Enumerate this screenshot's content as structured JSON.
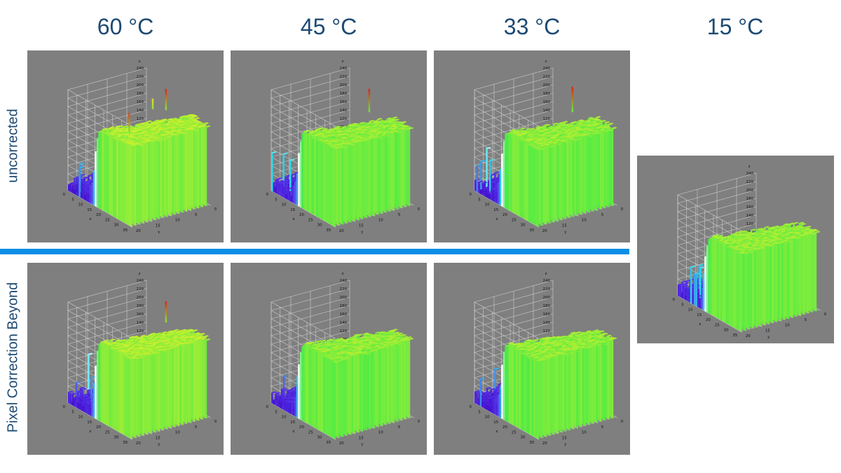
{
  "columns": [
    "60 °C",
    "45 °C",
    "33 °C",
    "15 °C"
  ],
  "rows": [
    "uncorrected",
    "Pixel Correction Beyond"
  ],
  "colors": {
    "text": "#1d4a73",
    "divider": "#0b8fe6",
    "panel": "#7f7f7f"
  },
  "chart_data": [
    {
      "type": "surface3d",
      "panel": "60 °C uncorrected",
      "zlabel": "z",
      "xlabel": "x",
      "ylabel": "y",
      "zticks": [
        0,
        20,
        40,
        60,
        80,
        100,
        120,
        140,
        160,
        180,
        200,
        220,
        240
      ],
      "xticks": [
        0,
        5,
        10,
        15,
        20,
        25,
        30,
        35
      ],
      "yticks": [
        20,
        15,
        10,
        5,
        0
      ],
      "zlim": [
        0,
        240
      ],
      "low_level": 20,
      "high_level": 190,
      "spikes": [
        {
          "z": 240
        },
        {
          "z": 235
        },
        {
          "z": 215
        }
      ]
    },
    {
      "type": "surface3d",
      "panel": "45 °C uncorrected",
      "zlabel": "z",
      "xlabel": "x",
      "ylabel": "y",
      "zticks": [
        0,
        20,
        40,
        60,
        80,
        100,
        120,
        140,
        160,
        180,
        200,
        220,
        240
      ],
      "xticks": [
        0,
        5,
        10,
        15,
        20,
        25,
        30,
        35
      ],
      "yticks": [
        20,
        15,
        10,
        5,
        0
      ],
      "zlim": [
        0,
        240
      ],
      "low_level": 20,
      "high_level": 185,
      "spikes": [
        {
          "z": 240
        }
      ]
    },
    {
      "type": "surface3d",
      "panel": "33 °C uncorrected",
      "zlabel": "z",
      "xlabel": "x",
      "ylabel": "y",
      "zticks": [
        0,
        20,
        40,
        60,
        80,
        100,
        120,
        140,
        160,
        180,
        200,
        220,
        240
      ],
      "xticks": [
        0,
        5,
        10,
        15,
        20,
        25,
        30,
        35
      ],
      "yticks": [
        20,
        15,
        10,
        5,
        0
      ],
      "zlim": [
        0,
        240
      ],
      "low_level": 20,
      "high_level": 185,
      "spikes": [
        {
          "z": 245
        }
      ]
    },
    {
      "type": "surface3d",
      "panel": "15 °C",
      "zlabel": "z",
      "xlabel": "x",
      "ylabel": "y",
      "zticks": [
        0,
        20,
        40,
        60,
        80,
        100,
        120,
        140,
        160,
        180,
        200,
        220,
        240
      ],
      "xticks": [
        0,
        5,
        10,
        15,
        20,
        25,
        30,
        35
      ],
      "yticks": [
        20,
        15,
        10,
        5,
        0
      ],
      "zlim": [
        0,
        240
      ],
      "low_level": 20,
      "high_level": 185,
      "spikes": []
    },
    {
      "type": "surface3d",
      "panel": "60 °C Pixel Correction Beyond",
      "zlabel": "z",
      "xlabel": "x",
      "ylabel": "y",
      "zticks": [
        0,
        20,
        40,
        60,
        80,
        100,
        120,
        140,
        160,
        180,
        200,
        220,
        240
      ],
      "xticks": [
        0,
        5,
        10,
        15,
        20,
        25,
        30,
        35
      ],
      "yticks": [
        20,
        15,
        10,
        5,
        0
      ],
      "zlim": [
        0,
        240
      ],
      "low_level": 20,
      "high_level": 190,
      "spikes": [
        {
          "z": 240
        }
      ]
    },
    {
      "type": "surface3d",
      "panel": "45 °C Pixel Correction Beyond",
      "zlabel": "z",
      "xlabel": "x",
      "ylabel": "y",
      "zticks": [
        0,
        20,
        40,
        60,
        80,
        100,
        120,
        140,
        160,
        180,
        200,
        220,
        240
      ],
      "xticks": [
        0,
        5,
        10,
        15,
        20,
        25,
        30,
        35
      ],
      "yticks": [
        20,
        15,
        10,
        5,
        0
      ],
      "zlim": [
        0,
        240
      ],
      "low_level": 20,
      "high_level": 185,
      "spikes": []
    },
    {
      "type": "surface3d",
      "panel": "33 °C Pixel Correction Beyond",
      "zlabel": "z",
      "xlabel": "x",
      "ylabel": "y",
      "zticks": [
        0,
        20,
        40,
        60,
        80,
        100,
        120,
        140,
        160,
        180,
        200,
        220,
        240
      ],
      "xticks": [
        0,
        5,
        10,
        15,
        20,
        25,
        30,
        35
      ],
      "yticks": [
        20,
        15,
        10,
        5,
        0
      ],
      "zlim": [
        0,
        240
      ],
      "low_level": 20,
      "high_level": 185,
      "spikes": []
    }
  ]
}
